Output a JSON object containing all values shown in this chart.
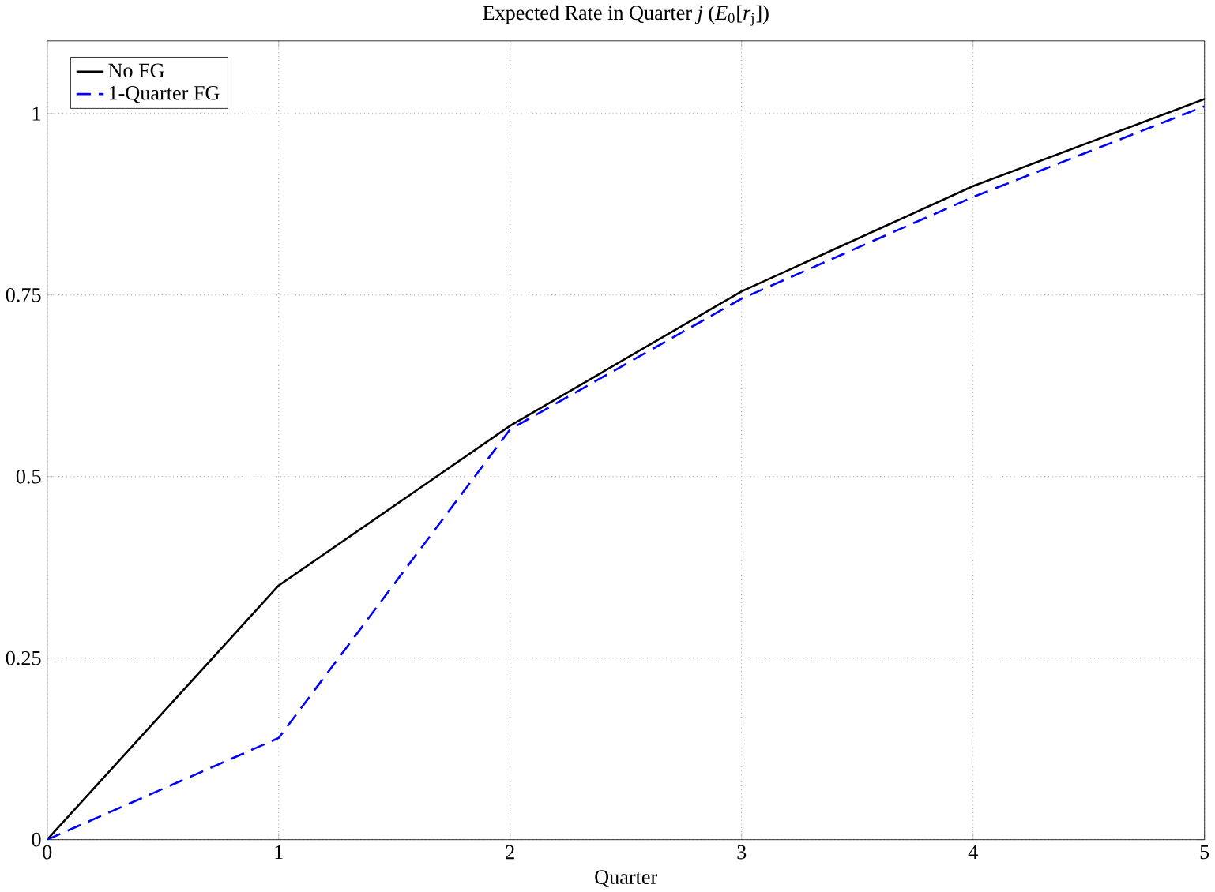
{
  "chart_data": {
    "type": "line",
    "title": "Expected Rate in Quarter *j* (*E*$_{0}$[*r*$_{j}$])",
    "xlabel": "Quarter",
    "x": [
      0,
      1,
      2,
      3,
      4,
      5
    ],
    "series": [
      {
        "name": "No FG",
        "color": "#000000",
        "line_style": "solid",
        "values": [
          0,
          0.35,
          0.57,
          0.755,
          0.9,
          1.02
        ]
      },
      {
        "name": "1-Quarter FG",
        "color": "#0000ff",
        "line_style": "dashed",
        "values": [
          0,
          0.14,
          0.565,
          0.745,
          0.885,
          1.01
        ]
      }
    ],
    "xlim": [
      0,
      5
    ],
    "ylim": [
      0,
      1.1
    ],
    "xticks": [
      0,
      1,
      2,
      3,
      4,
      5
    ],
    "yticks": [
      0,
      0.25,
      0.5,
      0.75,
      1
    ],
    "grid": true,
    "legend": "top left",
    "marker": "none"
  }
}
